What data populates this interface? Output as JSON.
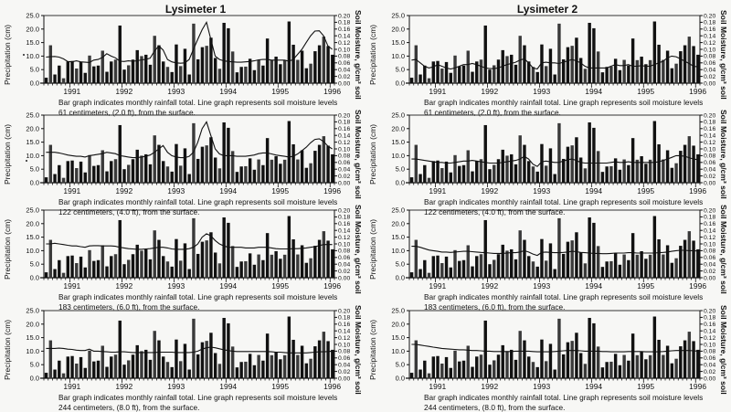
{
  "columns": [
    {
      "title": "Lysimeter 1"
    },
    {
      "title": "Lysimeter 2"
    }
  ],
  "chart_data": {
    "type": "bar+line",
    "description": "Monthly rainfall totals (bars) with soil moisture levels (line) at four depths for two lysimeters",
    "x_tick_labels": [
      "1991",
      "1992",
      "1993",
      "1994",
      "1995",
      "1996"
    ],
    "left_axis": {
      "label": "Precipitation (cm)",
      "ticks": [
        "0.0",
        "5.0",
        "10.0",
        "15.0",
        "20.0",
        "25.0"
      ],
      "range": [
        0,
        25
      ]
    },
    "right_axis": {
      "label": "Soil Moisture, g/cm³ soil",
      "ticks": [
        "0.00",
        "0.02",
        "0.04",
        "0.06",
        "0.08",
        "0.10",
        "0.12",
        "0.14",
        "0.16",
        "0.18",
        "0.20"
      ],
      "range": [
        0,
        0.2
      ]
    },
    "caption_line1": "Bar graph indicates monthly rainfall total. Line graph represents soil moisture levels",
    "rainfall_cm": [
      2,
      14,
      3.2,
      6.5,
      1.8,
      8,
      8.2,
      5.4,
      7.8,
      3.8,
      10.2,
      6.2,
      6.5,
      12,
      4.2,
      8,
      8.7,
      21.3,
      5,
      6.6,
      8.7,
      12.2,
      10,
      10.5,
      6.8,
      17.5,
      14,
      8,
      6,
      4.1,
      14.3,
      6.3,
      12.7,
      3.2,
      22,
      8.8,
      13.3,
      13.8,
      16.8,
      9.3,
      5.3,
      22.3,
      20.3,
      11.7,
      4,
      6,
      6.1,
      9,
      4.8,
      8.6,
      6.5,
      16.5,
      8.5,
      9.8,
      7,
      8.5,
      22.8,
      14.2,
      8.6,
      12,
      5.5,
      7.2,
      11.8,
      14,
      17.2,
      13.7,
      10.5
    ],
    "panels": [
      {
        "lysimeter": "Lysimeter 1",
        "depth_caption": "61 centimeters, (2.0 ft), from the surface.",
        "soil_moisture": [
          0.077,
          0.078,
          0.079,
          0.077,
          0.072,
          0.064,
          0.063,
          0.066,
          0.063,
          0.062,
          0.061,
          0.068,
          0.07,
          0.076,
          0.087,
          0.08,
          0.075,
          0.065,
          0.064,
          0.066,
          0.065,
          0.066,
          0.069,
          0.07,
          0.074,
          0.095,
          0.11,
          0.098,
          0.07,
          0.063,
          0.06,
          0.059,
          0.06,
          0.07,
          0.1,
          0.13,
          0.158,
          0.18,
          0.13,
          0.08,
          0.07,
          0.066,
          0.064,
          0.063,
          0.062,
          0.062,
          0.063,
          0.064,
          0.066,
          0.069,
          0.07,
          0.07,
          0.068,
          0.068,
          0.068,
          0.068,
          0.065,
          0.07,
          0.085,
          0.1,
          0.12,
          0.14,
          0.154,
          0.155,
          0.14,
          0.11,
          0.1
        ]
      },
      {
        "lysimeter": "Lysimeter 2",
        "depth_caption": "61 centimeters, (2.0 ft), from the surface.",
        "soil_moisture": [
          0.068,
          0.07,
          0.06,
          0.05,
          0.045,
          0.048,
          0.055,
          0.05,
          0.045,
          0.042,
          0.045,
          0.05,
          0.055,
          0.055,
          0.058,
          0.055,
          0.05,
          0.045,
          0.043,
          0.043,
          0.045,
          0.05,
          0.055,
          0.058,
          0.062,
          0.068,
          0.072,
          0.06,
          0.045,
          0.042,
          0.06,
          0.062,
          0.06,
          0.06,
          0.058,
          0.062,
          0.066,
          0.07,
          0.066,
          0.06,
          0.05,
          0.045,
          0.045,
          0.045,
          0.045,
          0.045,
          0.05,
          0.055,
          0.052,
          0.052,
          0.055,
          0.05,
          0.05,
          0.052,
          0.05,
          0.05,
          0.055,
          0.06,
          0.065,
          0.075,
          0.08,
          0.078,
          0.072,
          0.065,
          0.058,
          0.05,
          0.048
        ]
      },
      {
        "lysimeter": "Lysimeter 1",
        "depth_caption": "122 centimeters, (4.0 ft), from the surface.",
        "soil_moisture": [
          0.09,
          0.09,
          0.09,
          0.088,
          0.085,
          0.082,
          0.08,
          0.078,
          0.078,
          0.076,
          0.08,
          0.082,
          0.084,
          0.086,
          0.09,
          0.088,
          0.086,
          0.08,
          0.078,
          0.076,
          0.074,
          0.074,
          0.076,
          0.078,
          0.082,
          0.09,
          0.1,
          0.11,
          0.09,
          0.08,
          0.076,
          0.074,
          0.074,
          0.078,
          0.09,
          0.12,
          0.16,
          0.18,
          0.14,
          0.1,
          0.085,
          0.08,
          0.08,
          0.08,
          0.078,
          0.078,
          0.078,
          0.08,
          0.082,
          0.086,
          0.088,
          0.088,
          0.085,
          0.082,
          0.08,
          0.078,
          0.076,
          0.078,
          0.085,
          0.095,
          0.105,
          0.118,
          0.128,
          0.13,
          0.122,
          0.108,
          0.1
        ]
      },
      {
        "lysimeter": "Lysimeter 2",
        "depth_caption": "122 centimeters, (4.0 ft), from the surface.",
        "soil_moisture": [
          0.07,
          0.07,
          0.068,
          0.066,
          0.064,
          0.062,
          0.06,
          0.06,
          0.058,
          0.058,
          0.06,
          0.062,
          0.064,
          0.064,
          0.066,
          0.064,
          0.062,
          0.06,
          0.058,
          0.058,
          0.058,
          0.06,
          0.062,
          0.064,
          0.066,
          0.07,
          0.078,
          0.07,
          0.055,
          0.048,
          0.062,
          0.064,
          0.062,
          0.06,
          0.06,
          0.064,
          0.068,
          0.07,
          0.066,
          0.06,
          0.058,
          0.058,
          0.058,
          0.058,
          0.058,
          0.058,
          0.06,
          0.062,
          0.06,
          0.06,
          0.062,
          0.06,
          0.06,
          0.06,
          0.06,
          0.06,
          0.06,
          0.062,
          0.066,
          0.07,
          0.075,
          0.08,
          0.08,
          0.078,
          0.074,
          0.07,
          0.068
        ]
      },
      {
        "lysimeter": "Lysimeter 1",
        "depth_caption": "183 centimeters, (6.0 ft), from the surface.",
        "soil_moisture": [
          0.1,
          0.1,
          0.102,
          0.1,
          0.098,
          0.096,
          0.094,
          0.094,
          0.092,
          0.09,
          0.094,
          0.095,
          0.095,
          0.094,
          0.094,
          0.094,
          0.093,
          0.09,
          0.088,
          0.086,
          0.085,
          0.084,
          0.084,
          0.085,
          0.086,
          0.088,
          0.09,
          0.09,
          0.088,
          0.085,
          0.084,
          0.084,
          0.084,
          0.086,
          0.09,
          0.1,
          0.12,
          0.13,
          0.124,
          0.11,
          0.1,
          0.094,
          0.09,
          0.09,
          0.09,
          0.09,
          0.088,
          0.088,
          0.088,
          0.09,
          0.09,
          0.09,
          0.088,
          0.086,
          0.085,
          0.085,
          0.085,
          0.086,
          0.086,
          0.087,
          0.088,
          0.09,
          0.092,
          0.095,
          0.098,
          0.098,
          0.098
        ]
      },
      {
        "lysimeter": "Lysimeter 2",
        "depth_caption": "183 centimeters, (6.0 ft), from the surface.",
        "soil_moisture": [
          0.093,
          0.093,
          0.09,
          0.086,
          0.082,
          0.08,
          0.078,
          0.076,
          0.076,
          0.075,
          0.076,
          0.077,
          0.078,
          0.078,
          0.077,
          0.076,
          0.075,
          0.074,
          0.073,
          0.072,
          0.072,
          0.072,
          0.073,
          0.074,
          0.074,
          0.076,
          0.08,
          0.076,
          0.07,
          0.066,
          0.075,
          0.076,
          0.075,
          0.074,
          0.074,
          0.075,
          0.076,
          0.078,
          0.077,
          0.075,
          0.074,
          0.073,
          0.072,
          0.072,
          0.071,
          0.071,
          0.072,
          0.073,
          0.073,
          0.073,
          0.074,
          0.074,
          0.073,
          0.073,
          0.073,
          0.073,
          0.073,
          0.074,
          0.075,
          0.076,
          0.078,
          0.08,
          0.081,
          0.081,
          0.08,
          0.08,
          0.079
        ]
      },
      {
        "lysimeter": "Lysimeter 1",
        "depth_caption": "244 centimeters, (8.0 ft), from the surface.",
        "soil_moisture": [
          0.088,
          0.088,
          0.088,
          0.089,
          0.088,
          0.086,
          0.085,
          0.083,
          0.082,
          0.082,
          0.086,
          0.08,
          0.08,
          0.079,
          0.078,
          0.077,
          0.077,
          0.078,
          0.078,
          0.077,
          0.076,
          0.076,
          0.076,
          0.076,
          0.076,
          0.076,
          0.077,
          0.077,
          0.077,
          0.077,
          0.076,
          0.076,
          0.076,
          0.076,
          0.077,
          0.08,
          0.086,
          0.09,
          0.092,
          0.09,
          0.087,
          0.084,
          0.082,
          0.08,
          0.079,
          0.079,
          0.079,
          0.079,
          0.079,
          0.079,
          0.079,
          0.079,
          0.078,
          0.077,
          0.077,
          0.076,
          0.075,
          0.075,
          0.075,
          0.075,
          0.075,
          0.076,
          0.077,
          0.078,
          0.078,
          0.079,
          0.08
        ]
      },
      {
        "lysimeter": "Lysimeter 2",
        "depth_caption": "244 centimeters, (8.0 ft), from the surface.",
        "soil_moisture": [
          0.1,
          0.1,
          0.098,
          0.096,
          0.094,
          0.092,
          0.09,
          0.088,
          0.087,
          0.086,
          0.085,
          0.084,
          0.084,
          0.083,
          0.082,
          0.082,
          0.081,
          0.08,
          0.08,
          0.079,
          0.079,
          0.079,
          0.079,
          0.079,
          0.08,
          0.08,
          0.08,
          0.08,
          0.079,
          0.078,
          0.078,
          0.078,
          0.078,
          0.079,
          0.08,
          0.081,
          0.082,
          0.082,
          0.082,
          0.081,
          0.08,
          0.08,
          0.08,
          0.08,
          0.079,
          0.079,
          0.078,
          0.078,
          0.078,
          0.078,
          0.079,
          0.079,
          0.079,
          0.079,
          0.078,
          0.078,
          0.078,
          0.078,
          0.079,
          0.08,
          0.081,
          0.082,
          0.082,
          0.082,
          0.082,
          0.081,
          0.08
        ]
      }
    ]
  }
}
